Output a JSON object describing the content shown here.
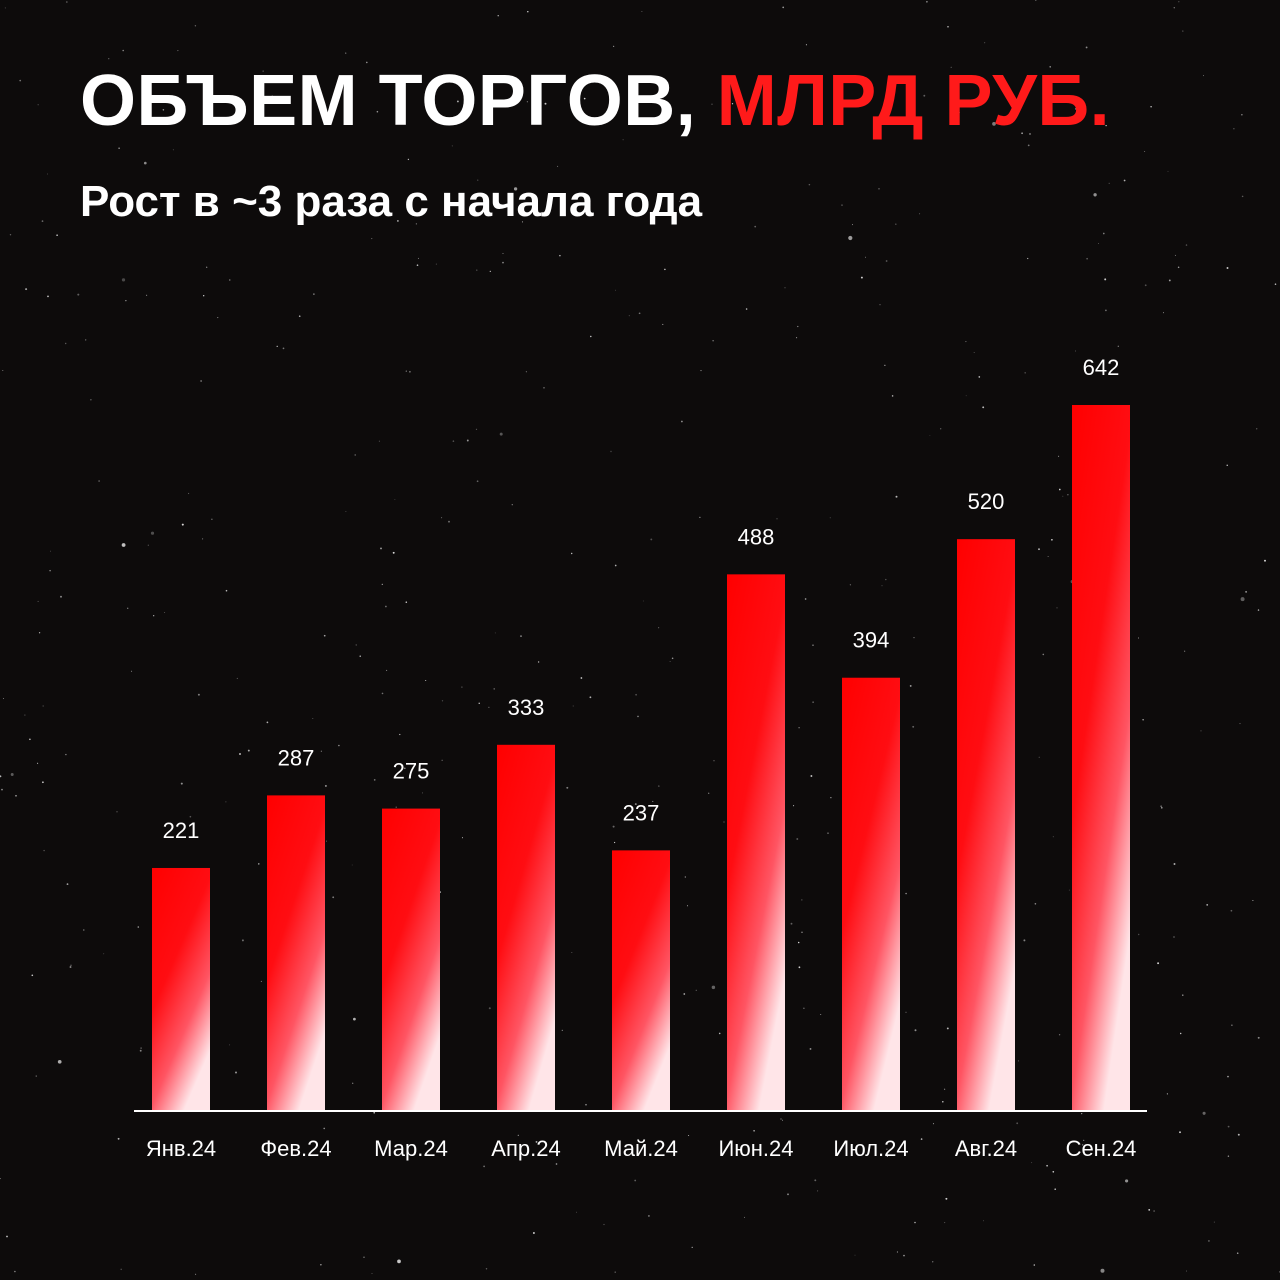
{
  "header": {
    "title_main": "ОБЪЕМ ТОРГОВ,",
    "title_accent": "МЛРД РУБ.",
    "subtitle": "Рост в ~3 раза с начала года"
  },
  "colors": {
    "background": "#0d0b0b",
    "accent": "#ff1a1a",
    "bar_top": "#ff0000",
    "bar_bottom": "#ffe5e8",
    "text": "#ffffff"
  },
  "chart_data": {
    "type": "bar",
    "categories": [
      "Янв.24",
      "Фев.24",
      "Мар.24",
      "Апр.24",
      "Май.24",
      "Июн.24",
      "Июл.24",
      "Авг.24",
      "Сен.24"
    ],
    "values": [
      221,
      287,
      275,
      333,
      237,
      488,
      394,
      520,
      642
    ],
    "ylim": [
      0,
      642
    ],
    "grid": false,
    "data_labels": true
  }
}
